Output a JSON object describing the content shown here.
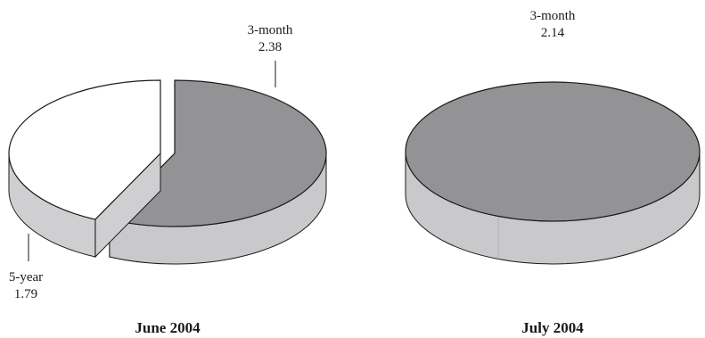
{
  "colors": {
    "top_dark": "#939396",
    "side_dark": "#c9c9cb",
    "top_light": "#ffffff",
    "side_light": "#cfcfd1",
    "stroke": "#1a1a1a"
  },
  "chart_data": [
    {
      "type": "pie",
      "style": "3d-exploded",
      "title": "June 2004",
      "slices": [
        {
          "label": "3-month",
          "value": 2.38,
          "value_text": "2.38",
          "color": "#939396"
        },
        {
          "label": "5-year",
          "value": 1.79,
          "value_text": "1.79",
          "color": "#ffffff"
        }
      ]
    },
    {
      "type": "pie",
      "style": "3d",
      "title": "July 2004",
      "slices": [
        {
          "label": "3-month",
          "value": 2.14,
          "value_text": "2.14",
          "color": "#939396"
        }
      ]
    }
  ]
}
